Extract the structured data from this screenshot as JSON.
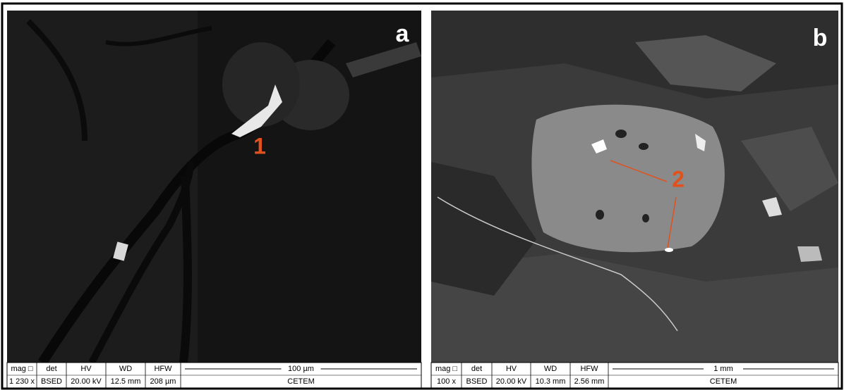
{
  "panels": [
    {
      "label": "a",
      "marker": "1",
      "info": {
        "headers": [
          "mag □",
          "det",
          "HV",
          "WD",
          "HFW"
        ],
        "values": [
          "1 230 x",
          "BSED",
          "20.00 kV",
          "12.5 mm",
          "208 µm"
        ],
        "scale": "100 µm",
        "institution": "CETEM"
      }
    },
    {
      "label": "b",
      "marker": "2",
      "info": {
        "headers": [
          "mag □",
          "det",
          "HV",
          "WD",
          "HFW"
        ],
        "values": [
          "100 x",
          "BSED",
          "20.00 kV",
          "10.3 mm",
          "2.56 mm"
        ],
        "scale": "1 mm",
        "institution": "CETEM"
      }
    }
  ]
}
